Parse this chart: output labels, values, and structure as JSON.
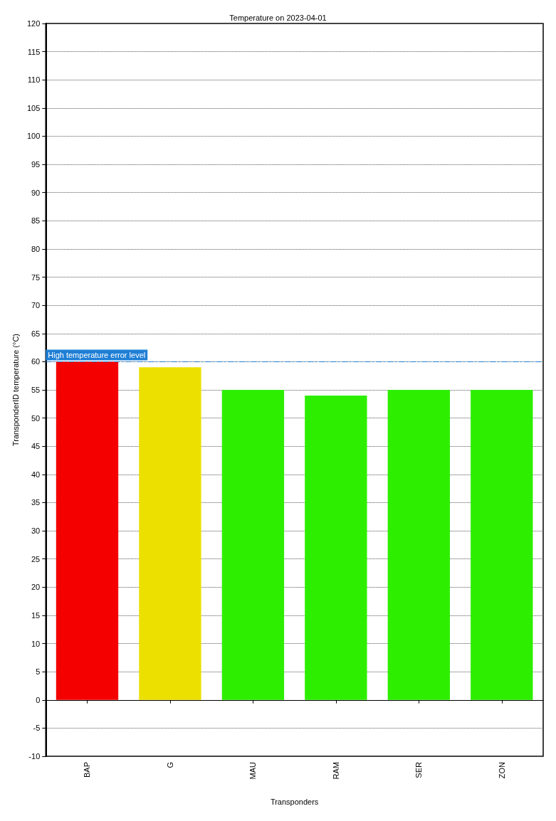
{
  "chart_data": {
    "type": "bar",
    "title": "Temperature on 2023-04-01",
    "xlabel": "Transponders",
    "ylabel": "TransponderID temperature (°C)",
    "categories": [
      "BAP",
      "G",
      "MAU",
      "RAM",
      "SER",
      "ZON"
    ],
    "values": [
      60,
      59,
      55,
      54,
      55,
      55
    ],
    "colors": [
      "#f50000",
      "#ebe000",
      "#2eee00",
      "#2eee00",
      "#2eee00",
      "#2eee00"
    ],
    "ylim": [
      -10,
      120
    ],
    "yticks": [
      -10,
      -5,
      0,
      5,
      10,
      15,
      20,
      25,
      30,
      35,
      40,
      45,
      50,
      55,
      60,
      65,
      70,
      75,
      80,
      85,
      90,
      95,
      100,
      105,
      110,
      115,
      120
    ],
    "grid": "y",
    "ref_lines": [
      {
        "axis": "y",
        "value": 60,
        "label": "High temperature error level",
        "color": "#1f7fd6",
        "line_style": "dashdot"
      }
    ]
  }
}
